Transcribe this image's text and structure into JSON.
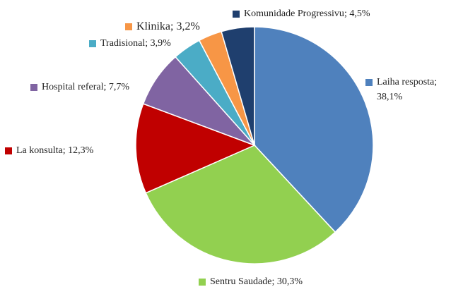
{
  "chart_data": {
    "type": "pie",
    "categories": [
      "Laiha resposta",
      "Sentru Saudade",
      "La konsulta",
      "Hospital referal",
      "Tradisional",
      "Klinika",
      "Komunidade Progressivu"
    ],
    "values": [
      38.1,
      30.3,
      12.3,
      7.7,
      3.9,
      3.2,
      4.5
    ],
    "value_labels": [
      "38,1%",
      "30,3%",
      "12,3%",
      "7,7%",
      "3,9%",
      "3,2%",
      "4,5%"
    ],
    "label_separator": "; ",
    "colors": [
      "#4f81bd",
      "#92d050",
      "#c00000",
      "#8064a2",
      "#4bacc6",
      "#f79646",
      "#1f3f6e"
    ]
  }
}
